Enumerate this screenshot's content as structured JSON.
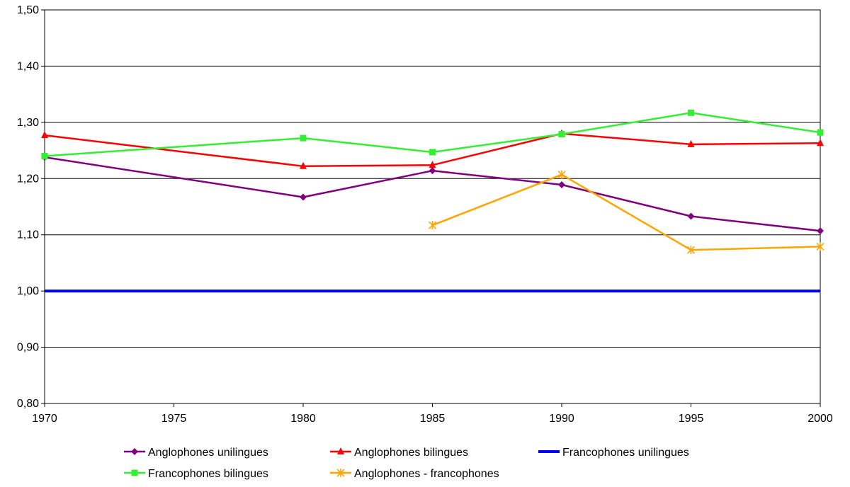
{
  "chart_data": {
    "type": "line",
    "x": [
      1970,
      1975,
      1980,
      1985,
      1990,
      1995,
      2000
    ],
    "x_tick_labels": [
      "1970",
      "1975",
      "1980",
      "1985",
      "1990",
      "1995",
      "2000"
    ],
    "y_tick_labels": [
      "0,80",
      "0,90",
      "1,00",
      "1,10",
      "1,20",
      "1,30",
      "1,40",
      "1,50"
    ],
    "y_ticks": [
      0.8,
      0.9,
      1.0,
      1.1,
      1.2,
      1.3,
      1.4,
      1.5
    ],
    "ylim": [
      0.8,
      1.5
    ],
    "xlim": [
      1970,
      2000
    ],
    "grid": "horizontal",
    "legend_position": "bottom",
    "series": [
      {
        "name": "Anglophones unilingues",
        "color": "#800080",
        "marker": "diamond",
        "points": [
          [
            1970,
            1.238
          ],
          [
            1980,
            1.167
          ],
          [
            1985,
            1.214
          ],
          [
            1990,
            1.189
          ],
          [
            1995,
            1.133
          ],
          [
            2000,
            1.107
          ]
        ]
      },
      {
        "name": "Anglophones bilingues",
        "color": "#ff0000",
        "marker": "triangle",
        "points": [
          [
            1970,
            1.277
          ],
          [
            1980,
            1.222
          ],
          [
            1985,
            1.224
          ],
          [
            1990,
            1.28
          ],
          [
            1995,
            1.261
          ],
          [
            2000,
            1.263
          ]
        ]
      },
      {
        "name": "Francophones unilingues",
        "color": "#0000ff",
        "marker": "none",
        "points": [
          [
            1970,
            1.0
          ],
          [
            1980,
            1.0
          ],
          [
            1985,
            1.0
          ],
          [
            1990,
            1.0
          ],
          [
            1995,
            1.0
          ],
          [
            2000,
            1.0
          ]
        ]
      },
      {
        "name": "Francophones bilingues",
        "color": "#33ee33",
        "marker": "square",
        "points": [
          [
            1970,
            1.24
          ],
          [
            1980,
            1.272
          ],
          [
            1985,
            1.247
          ],
          [
            1990,
            1.279
          ],
          [
            1995,
            1.317
          ],
          [
            2000,
            1.282
          ]
        ]
      },
      {
        "name": "Anglophones - francophones",
        "color": "#ffa500",
        "marker": "star",
        "points": [
          [
            1985,
            1.117
          ],
          [
            1990,
            1.207
          ],
          [
            1995,
            1.073
          ],
          [
            2000,
            1.079
          ]
        ]
      }
    ]
  }
}
